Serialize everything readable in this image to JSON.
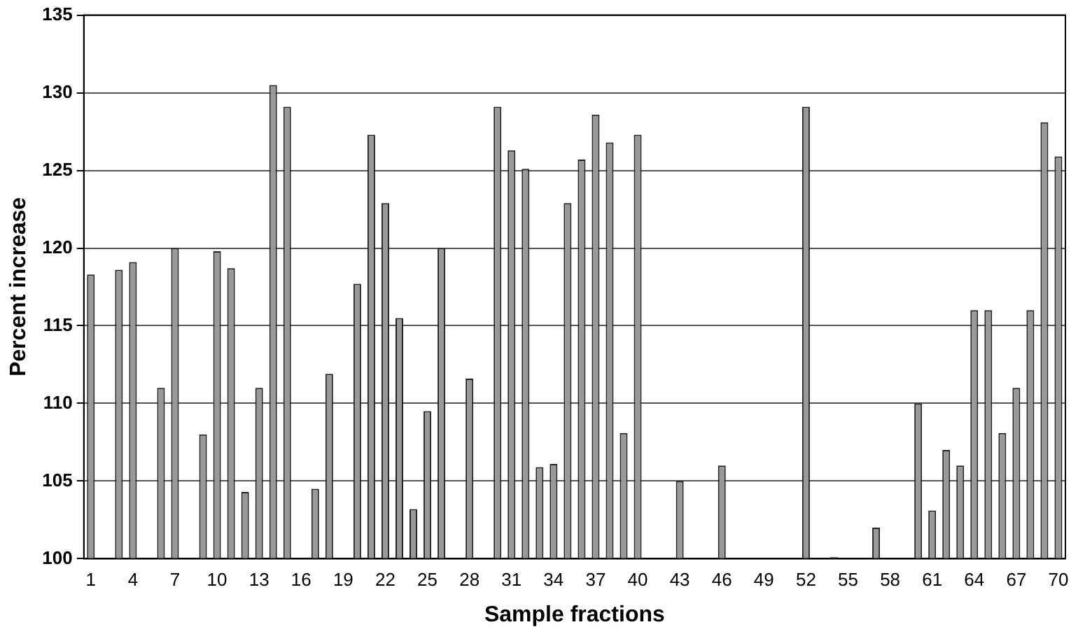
{
  "chart_data": {
    "type": "bar",
    "xlabel": "Sample fractions",
    "ylabel": "Percent increase",
    "categories": [
      "1",
      null,
      null,
      "4",
      null,
      null,
      "7",
      null,
      null,
      "10",
      null,
      null,
      "13",
      null,
      null,
      "16",
      null,
      null,
      "19",
      null,
      null,
      "22",
      null,
      null,
      "25",
      null,
      null,
      "28",
      null,
      null,
      "31",
      null,
      null,
      "34",
      null,
      null,
      "37",
      null,
      null,
      "40",
      null,
      null,
      "43",
      null,
      null,
      "46",
      null,
      null,
      "49",
      null,
      null,
      "52",
      null,
      null,
      "55",
      null,
      null,
      "58",
      null,
      null,
      "61",
      null,
      null,
      "64",
      null,
      null,
      "67",
      null,
      null,
      "70"
    ],
    "values": [
      118.3,
      null,
      118.6,
      119.1,
      null,
      111,
      120,
      null,
      108,
      119.8,
      118.7,
      104.3,
      111,
      130.5,
      129.1,
      null,
      104.5,
      111.9,
      null,
      117.7,
      127.3,
      122.9,
      115.5,
      103.2,
      109.5,
      120,
      null,
      111.6,
      null,
      129.1,
      126.3,
      125.1,
      105.9,
      106.1,
      122.9,
      125.7,
      128.6,
      126.8,
      108.1,
      127.3,
      null,
      null,
      105,
      null,
      null,
      106,
      null,
      null,
      null,
      null,
      null,
      129.1,
      null,
      100.1,
      null,
      null,
      102,
      null,
      null,
      110,
      103.1,
      107,
      106,
      116,
      116,
      108.1,
      111,
      116,
      128.1,
      125.9
    ],
    "color": "#999999",
    "ylim": [
      100,
      135
    ],
    "yticks": [
      100,
      105,
      110,
      115,
      120,
      125,
      130,
      135
    ],
    "grid": "y"
  }
}
